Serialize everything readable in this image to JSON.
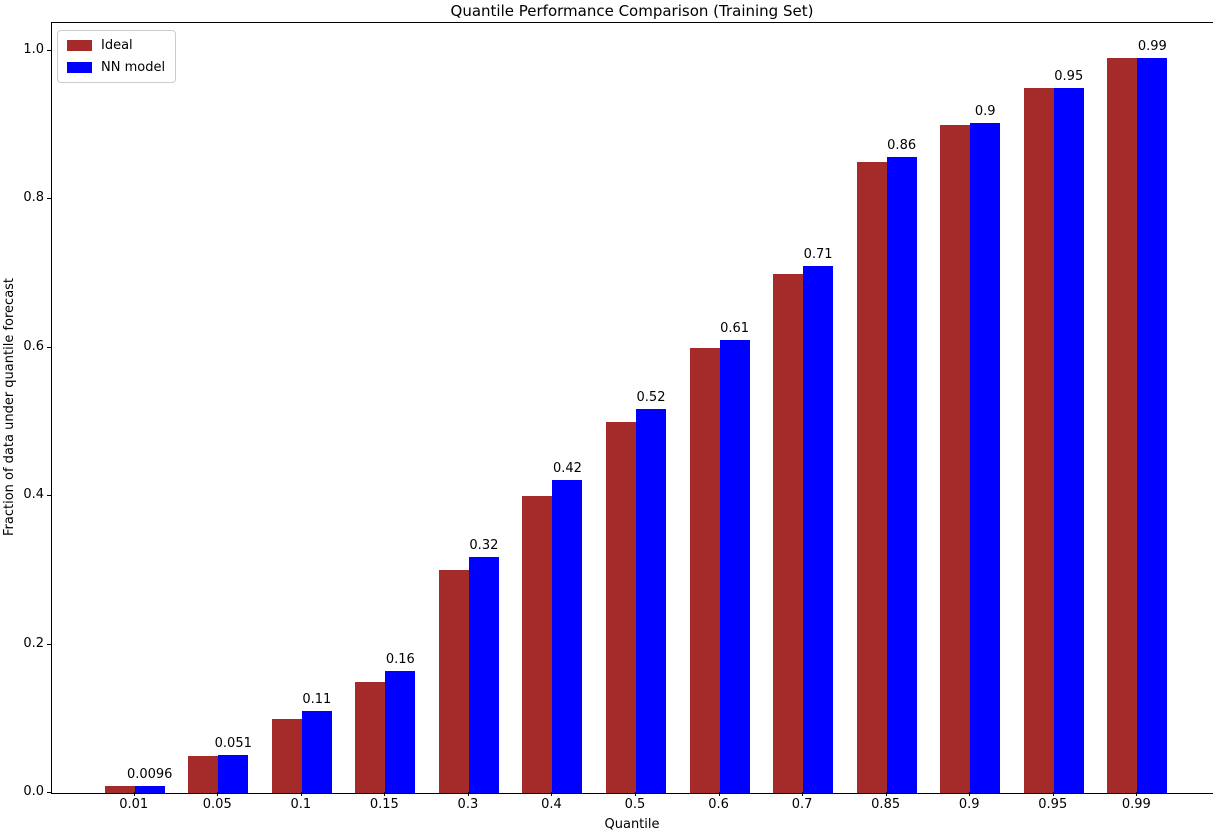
{
  "chart_data": {
    "type": "bar",
    "title": "Quantile Performance Comparison (Training Set)",
    "xlabel": "Quantile",
    "ylabel": "Fraction of data under quantile forecast",
    "categories": [
      "0.01",
      "0.05",
      "0.1",
      "0.15",
      "0.3",
      "0.4",
      "0.5",
      "0.6",
      "0.7",
      "0.85",
      "0.9",
      "0.95",
      "0.99"
    ],
    "series": [
      {
        "name": "Ideal",
        "color": "#A52A2A",
        "values": [
          0.01,
          0.05,
          0.1,
          0.15,
          0.3,
          0.4,
          0.5,
          0.6,
          0.7,
          0.85,
          0.9,
          0.95,
          0.991
        ]
      },
      {
        "name": "NN model",
        "color": "#0000FF",
        "values": [
          0.0096,
          0.051,
          0.11,
          0.164,
          0.318,
          0.422,
          0.517,
          0.61,
          0.71,
          0.857,
          0.903,
          0.95,
          0.99
        ],
        "bar_labels": [
          "0.0096",
          "0.051",
          "0.11",
          "0.16",
          "0.32",
          "0.42",
          "0.52",
          "0.61",
          "0.71",
          "0.86",
          "0.9",
          "0.95",
          "0.99"
        ]
      }
    ],
    "ytick_values": [
      0.0,
      0.2,
      0.4,
      0.6,
      0.8,
      1.0
    ],
    "ytick_labels": [
      "0.0",
      "0.2",
      "0.4",
      "0.6",
      "0.8",
      "1.0"
    ],
    "ylim": [
      0,
      1.0377
    ],
    "legend_position": "upper left",
    "grid": false,
    "background_color": "#ffffff"
  }
}
